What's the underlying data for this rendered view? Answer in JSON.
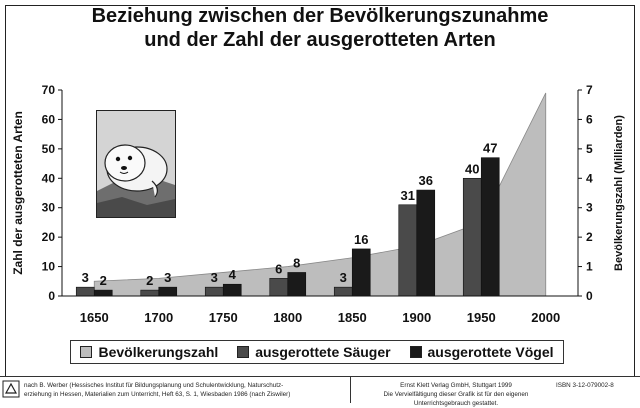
{
  "chart_data": {
    "type": "bar",
    "title_lines": [
      "Beziehung zwischen der Bevölkerungszunahme",
      "und der Zahl der ausgerotteten Arten"
    ],
    "ylabel_left": "Zahl der ausgerotteten Arten",
    "ylabel_right": "Bevölkerungszahl (Milliarden)",
    "categories": [
      "1650",
      "1700",
      "1750",
      "1800",
      "1850",
      "1900",
      "1950",
      "2000"
    ],
    "left_ylim": [
      0,
      70
    ],
    "left_ticks": [
      0,
      10,
      20,
      30,
      40,
      50,
      60,
      70
    ],
    "right_ylim": [
      0,
      7
    ],
    "right_ticks": [
      0,
      1,
      2,
      3,
      4,
      5,
      6,
      7
    ],
    "grid": false,
    "legend_position": "bottom",
    "series": [
      {
        "name": "Bevölkerungszahl",
        "kind": "area",
        "axis": "right",
        "color": "#bdbdbd",
        "values": [
          0.5,
          0.6,
          0.8,
          1.0,
          1.3,
          1.7,
          2.5,
          6.9
        ]
      },
      {
        "name": "ausgerottete Säuger",
        "kind": "bar",
        "axis": "left",
        "color": "#4a4a4a",
        "values": [
          3,
          2,
          3,
          6,
          3,
          31,
          40,
          null
        ],
        "labels": [
          "3",
          "2",
          "3",
          "6",
          "3",
          "31",
          "40",
          ""
        ]
      },
      {
        "name": "ausgerottete Vögel",
        "kind": "bar",
        "axis": "left",
        "color": "#1a1a1a",
        "values": [
          2,
          3,
          4,
          8,
          16,
          36,
          47,
          null
        ],
        "labels": [
          "2",
          "3",
          "4",
          "8",
          "16",
          "36",
          "47",
          ""
        ]
      }
    ]
  },
  "legend": {
    "items": [
      {
        "label": "Bevölkerungszahl",
        "color": "#bdbdbd"
      },
      {
        "label": "ausgerottete Säuger",
        "color": "#4a4a4a"
      },
      {
        "label": "ausgerottete Vögel",
        "color": "#1a1a1a"
      }
    ]
  },
  "footer": {
    "source_line1": "nach B. Werber (Hessisches Institut für Bildungsplanung und Schulentwicklung, Naturschutz-",
    "source_line2": "erziehung in Hessen, Materialien zum Unterricht, Heft 63, S. 1, Wiesbaden 1986 (nach Ziswiler)",
    "publisher_line1": "Ernst Klett Verlag GmbH, Stuttgart 1999",
    "publisher_line2": "Die Vervielfältigung dieser Grafik ist für den eigenen Unterrichtsgebrauch gestattet.",
    "isbn": "ISBN 3-12-079002-8"
  }
}
